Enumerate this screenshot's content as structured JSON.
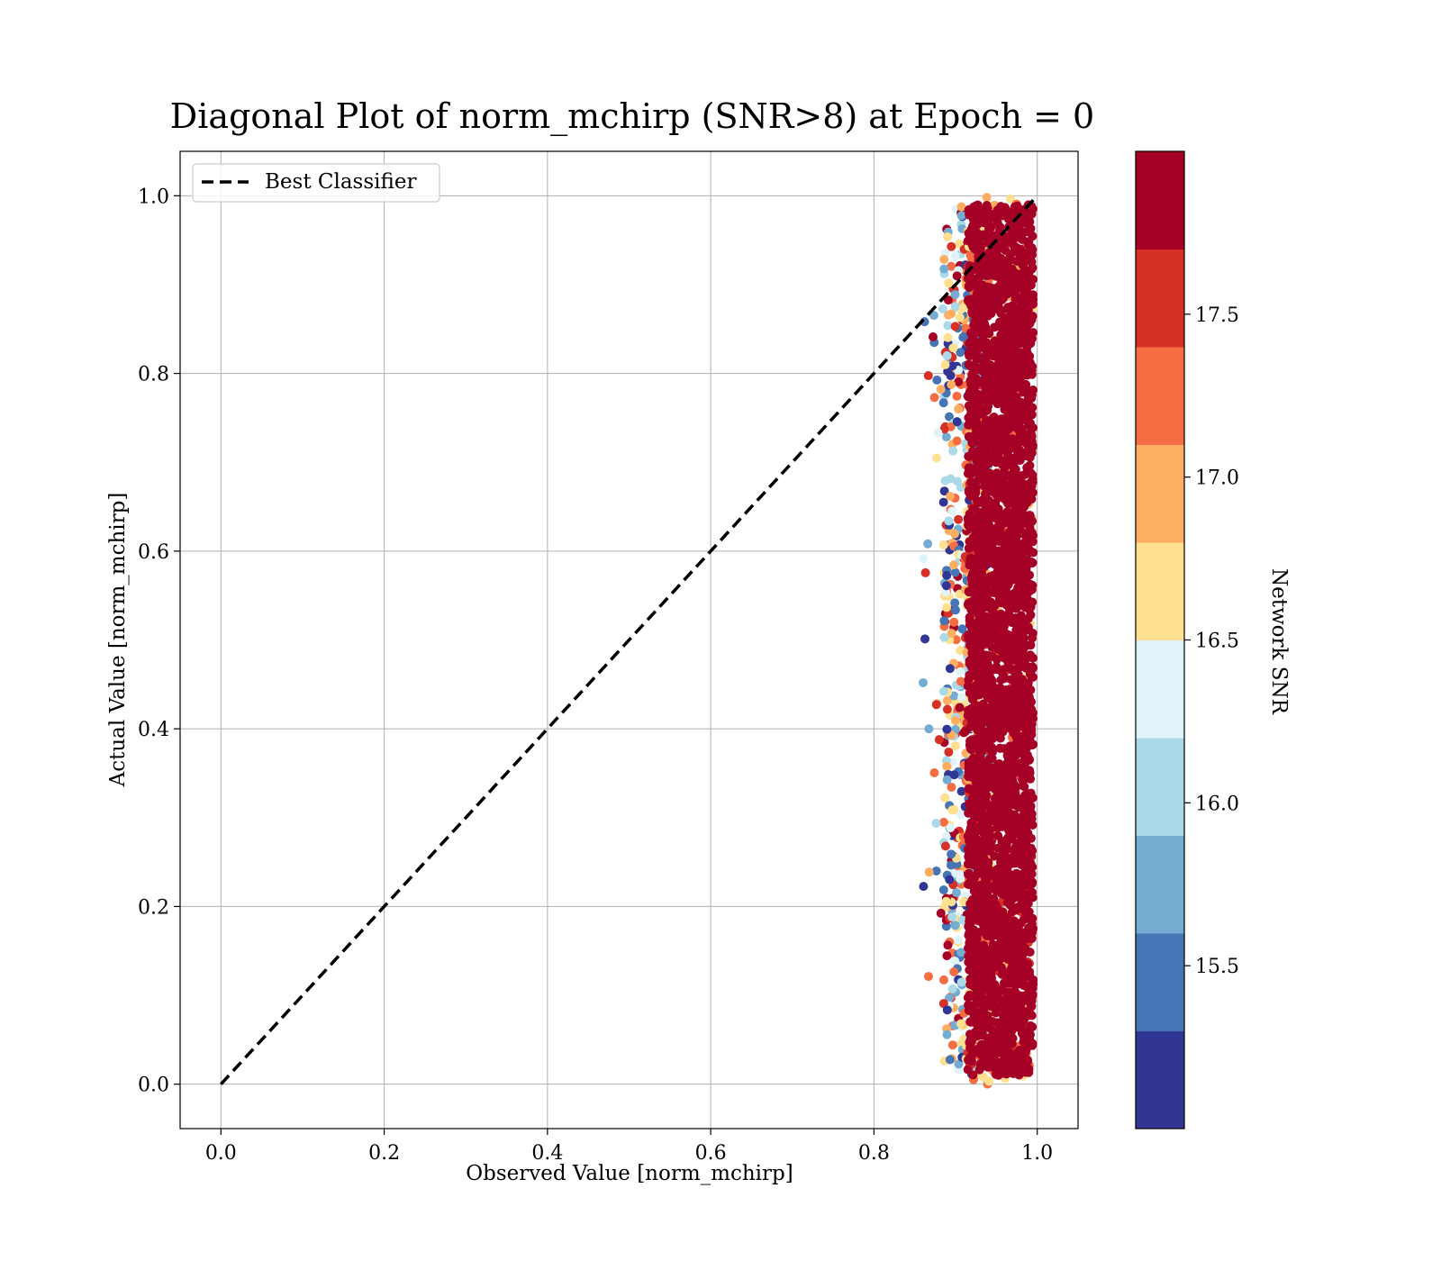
{
  "chart_data": {
    "type": "scatter",
    "title": "Diagonal Plot of norm_mchirp (SNR>8) at Epoch = 0",
    "xlabel": "Observed Value [norm_mchirp]",
    "ylabel": "Actual Value [norm_mchirp]",
    "xlim": [
      -0.05,
      1.05
    ],
    "ylim": [
      -0.05,
      1.05
    ],
    "xticks": [
      "0.0",
      "0.2",
      "0.4",
      "0.6",
      "0.8",
      "1.0"
    ],
    "yticks": [
      "0.0",
      "0.2",
      "0.4",
      "0.6",
      "0.8",
      "1.0"
    ],
    "grid": true,
    "legend": {
      "placement": "upper-left",
      "entries": [
        "Best Classifier"
      ]
    },
    "reference_line": {
      "name": "Best Classifier",
      "style": "dashed",
      "color": "#000000",
      "x": [
        0,
        1
      ],
      "y": [
        0,
        1
      ]
    },
    "scatter_cloud": {
      "x_range": [
        0.86,
        1.0
      ],
      "x_core": [
        0.91,
        0.995
      ],
      "y_range": [
        0.0,
        1.0
      ],
      "dominant_color": "#a50026"
    },
    "colorbar": {
      "label": "Network SNR",
      "range": [
        15.0,
        18.0
      ],
      "tick_values": [
        15.5,
        16.0,
        16.5,
        17.0,
        17.5
      ],
      "tick_labels": [
        "15.5",
        "16.0",
        "16.5",
        "17.0",
        "17.5"
      ],
      "colors": [
        "#313695",
        "#4575b4",
        "#74add1",
        "#abd9e9",
        "#e0f3f8",
        "#fee090",
        "#fdae61",
        "#f46d43",
        "#d73027",
        "#a50026"
      ]
    }
  }
}
